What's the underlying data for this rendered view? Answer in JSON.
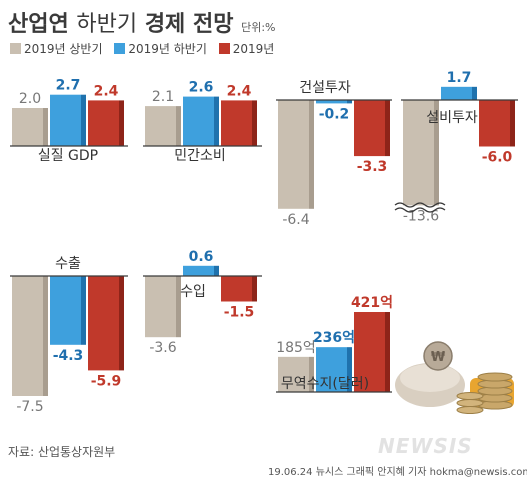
{
  "title": {
    "main": "산업연",
    "sub": "하반기",
    "bold2": "경제 전망",
    "unit": "단위:%"
  },
  "legend": [
    {
      "label": "2019년 상반기",
      "color": "#c9bfb1"
    },
    {
      "label": "2019년 하반기",
      "color": "#3ea0dd"
    },
    {
      "label": "2019년",
      "color": "#c0392b"
    }
  ],
  "colors": {
    "h1": "#c9bfb1",
    "h1_side": "#a89d8f",
    "h2": "#3ea0dd",
    "h2_side": "#1f72ad",
    "year": "#c0392b",
    "year_side": "#8e2419",
    "line": "#3a3a3a",
    "neg_text": "#c0392b",
    "pos_text_h2": "#1f6fae",
    "gray_text": "#777"
  },
  "chart_data": [
    {
      "type": "bar",
      "title": "실질 GDP",
      "categories": [
        "2019년 상반기",
        "2019년 하반기",
        "2019년"
      ],
      "values": [
        2.0,
        2.7,
        2.4
      ],
      "labels": [
        "2.0",
        "2.7",
        "2.4"
      ]
    },
    {
      "type": "bar",
      "title": "민간소비",
      "categories": [
        "2019년 상반기",
        "2019년 하반기",
        "2019년"
      ],
      "values": [
        2.1,
        2.6,
        2.4
      ],
      "labels": [
        "2.1",
        "2.6",
        "2.4"
      ]
    },
    {
      "type": "bar",
      "title": "건설투자",
      "categories": [
        "2019년 상반기",
        "2019년 하반기",
        "2019년"
      ],
      "values": [
        -6.4,
        -0.2,
        -3.3
      ],
      "labels": [
        "-6.4",
        "-0.2",
        "-3.3"
      ]
    },
    {
      "type": "bar",
      "title": "설비투자",
      "categories": [
        "2019년 상반기",
        "2019년 하반기",
        "2019년"
      ],
      "values": [
        -13.6,
        1.7,
        -6.0
      ],
      "labels": [
        "-13.6",
        "1.7",
        "-6.0"
      ]
    },
    {
      "type": "bar",
      "title": "수출",
      "categories": [
        "2019년 상반기",
        "2019년 하반기",
        "2019년"
      ],
      "values": [
        -7.5,
        -4.3,
        -5.9
      ],
      "labels": [
        "-7.5",
        "-4.3",
        "-5.9"
      ]
    },
    {
      "type": "bar",
      "title": "수입",
      "categories": [
        "2019년 상반기",
        "2019년 하반기",
        "2019년"
      ],
      "values": [
        -3.6,
        0.6,
        -1.5
      ],
      "labels": [
        "-3.6",
        "0.6",
        "-1.5"
      ]
    },
    {
      "type": "bar",
      "title": "무역수지(달러)",
      "categories": [
        "2019년 상반기",
        "2019년 하반기",
        "2019년"
      ],
      "values": [
        185,
        236,
        421
      ],
      "labels": [
        "185억",
        "236억",
        "421억"
      ]
    }
  ],
  "source": "자료: 산업통상자원부",
  "credit": "19.06.24 뉴시스 그래픽 안지혜 기자 hokma@newsis.com",
  "logo": "NEWSIS"
}
